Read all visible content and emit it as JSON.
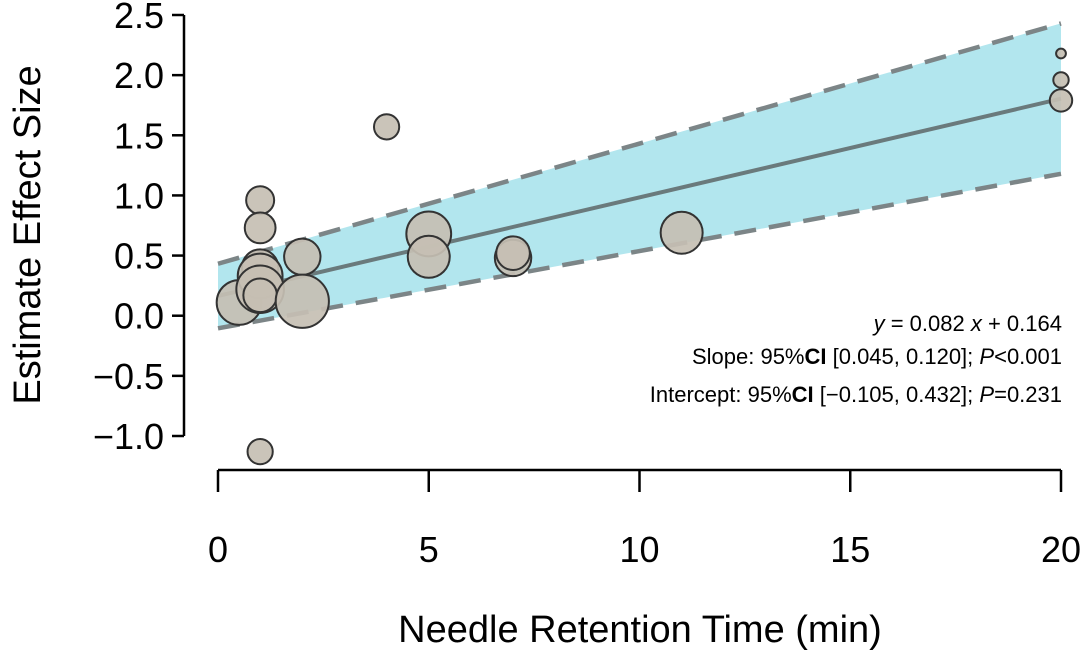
{
  "chart_data": {
    "type": "scatter",
    "subtype": "meta-regression bubble plot",
    "xlabel": "Needle Retention Time (min)",
    "ylabel": "Estimate Effect Size",
    "xlim": [
      0,
      20
    ],
    "ylim": [
      -1.0,
      2.5
    ],
    "x_ticks": [
      "0",
      "5",
      "10",
      "15",
      "20"
    ],
    "y_ticks": [
      "−1.0",
      "−0.5",
      "0.0",
      "0.5",
      "1.0",
      "1.5",
      "2.0",
      "2.5"
    ],
    "x_tick_values": [
      0,
      5,
      10,
      15,
      20
    ],
    "y_tick_values": [
      -1.0,
      -0.5,
      0.0,
      0.5,
      1.0,
      1.5,
      2.0,
      2.5
    ],
    "points": [
      {
        "x": 0.5,
        "y": 0.11,
        "weight": 1.6
      },
      {
        "x": 1,
        "y": 0.96,
        "weight": 1.0
      },
      {
        "x": 1,
        "y": 0.73,
        "weight": 1.1
      },
      {
        "x": 1,
        "y": 0.4,
        "weight": 1.3
      },
      {
        "x": 1,
        "y": 0.33,
        "weight": 1.6
      },
      {
        "x": 1,
        "y": 0.22,
        "weight": 1.7
      },
      {
        "x": 1,
        "y": 0.17,
        "weight": 1.2
      },
      {
        "x": 1,
        "y": -1.13,
        "weight": 0.9
      },
      {
        "x": 2,
        "y": 0.49,
        "weight": 1.3
      },
      {
        "x": 2,
        "y": 0.12,
        "weight": 1.9
      },
      {
        "x": 4,
        "y": 1.57,
        "weight": 0.9
      },
      {
        "x": 5,
        "y": 0.68,
        "weight": 1.6
      },
      {
        "x": 5,
        "y": 0.49,
        "weight": 1.5
      },
      {
        "x": 7,
        "y": 0.48,
        "weight": 1.3
      },
      {
        "x": 7,
        "y": 0.52,
        "weight": 1.2
      },
      {
        "x": 11,
        "y": 0.69,
        "weight": 1.5
      },
      {
        "x": 20,
        "y": 2.18,
        "weight": 0.35
      },
      {
        "x": 20,
        "y": 1.96,
        "weight": 0.55
      },
      {
        "x": 20,
        "y": 1.79,
        "weight": 0.8
      }
    ],
    "regression": {
      "slope": 0.082,
      "intercept": 0.164
    },
    "confidence_band": {
      "lower_at_xmin": -0.105,
      "upper_at_xmin": 0.432,
      "lower_at_xmax": 1.18,
      "upper_at_xmax": 2.43
    },
    "annotations": {
      "equation": {
        "y": "y",
        "middle": " = 0.082 ",
        "x": "x",
        "tail": " + 0.164"
      },
      "slope": {
        "prefix": "Slope: 95%",
        "ci": "CI",
        "range": " [0.045, 0.120];  ",
        "p": "P",
        "p_value": "<0.001"
      },
      "intercept": {
        "prefix": "Intercept: 95%",
        "ci": "CI",
        "range": " [−0.105, 0.432];  ",
        "p": "P",
        "p_value": "=0.231"
      }
    },
    "colors": {
      "band": "#b2e6ee",
      "line": "#6a7a7c",
      "ci_line": "#7c8587",
      "point_fill": "#c5bfb3",
      "point_stroke": "#333333",
      "axis": "#000000"
    }
  }
}
